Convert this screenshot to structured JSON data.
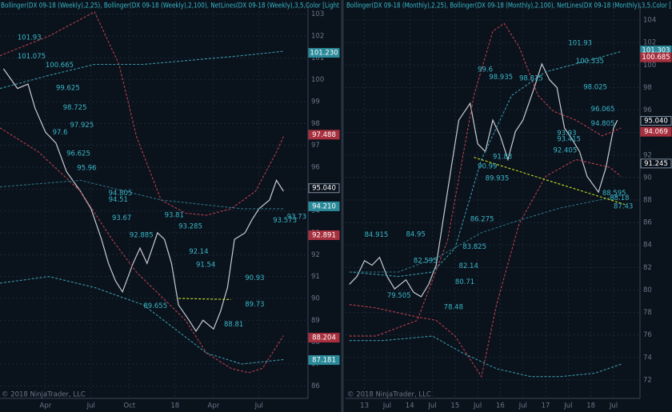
{
  "chart_data": [
    {
      "type": "line",
      "header": "Bollinger(DX 09-18 (Weekly),2,25), Bollinger(DX 09-18 (Weekly),2,100), NetLines(DX 09-18 (Weekly),3,5,Color [Light",
      "footer": "© 2018 NinjaTrader, LLC",
      "xlim": [
        0,
        88
      ],
      "ylim": [
        85.5,
        103.5
      ],
      "xticks": [
        {
          "value": 13,
          "label": "Apr"
        },
        {
          "value": 26,
          "label": "Jul"
        },
        {
          "value": 37,
          "label": "Oct"
        },
        {
          "value": 50,
          "label": "18"
        },
        {
          "value": 61,
          "label": "Apr"
        },
        {
          "value": 74,
          "label": "Jul"
        }
      ],
      "yticks": [
        86,
        87,
        88,
        89,
        90,
        91,
        92,
        93,
        94,
        95,
        96,
        97,
        98,
        99,
        100,
        101,
        102,
        103
      ],
      "grid": true,
      "series": [
        {
          "color": "#c8ccd2",
          "style": "solid",
          "x": [
            1,
            5,
            8,
            10,
            13,
            16,
            19,
            23,
            26,
            29,
            31,
            33,
            35,
            38,
            40,
            42,
            45,
            47,
            49,
            51,
            54,
            56,
            58,
            61,
            63,
            65,
            67,
            70,
            72,
            74,
            77,
            79,
            81
          ],
          "values": [
            100.5,
            99.6,
            99.8,
            98.7,
            97.6,
            97.1,
            95.8,
            94.9,
            94.1,
            92.7,
            91.6,
            90.8,
            90.3,
            91.6,
            92.3,
            91.6,
            93.0,
            92.7,
            91.6,
            89.7,
            89.0,
            88.5,
            89.0,
            88.6,
            89.4,
            90.5,
            92.7,
            93.0,
            93.6,
            94.1,
            94.5,
            95.4,
            94.9
          ]
        },
        {
          "color": "#b8404c",
          "style": "dashed",
          "x": [
            0,
            14,
            27,
            34,
            39,
            46,
            53,
            59,
            66,
            73,
            79,
            81
          ],
          "values": [
            101.1,
            102.0,
            103.1,
            100.7,
            97.4,
            94.5,
            93.9,
            93.8,
            94.1,
            94.9,
            96.7,
            97.4
          ]
        },
        {
          "color": "#b8404c",
          "style": "dashed",
          "x": [
            0,
            11,
            23,
            32,
            39,
            46,
            53,
            59,
            66,
            71,
            75,
            81
          ],
          "values": [
            97.8,
            96.7,
            94.9,
            92.7,
            91.2,
            90.1,
            89.0,
            87.5,
            86.8,
            86.6,
            86.8,
            88.3
          ]
        },
        {
          "color": "#3a98a8",
          "style": "dashed",
          "x": [
            0,
            14,
            27,
            41,
            55,
            69,
            81
          ],
          "values": [
            99.6,
            100.2,
            100.7,
            100.7,
            100.9,
            101.1,
            101.3
          ]
        },
        {
          "color": "#3a98a8",
          "style": "dashed",
          "x": [
            0,
            14,
            27,
            41,
            50,
            59,
            69,
            81
          ],
          "values": [
            90.7,
            91.0,
            90.5,
            89.7,
            88.6,
            87.5,
            87.0,
            87.2
          ]
        },
        {
          "color": "#2c7080",
          "style": "dashed",
          "x": [
            0,
            23,
            46,
            69,
            81
          ],
          "values": [
            95.1,
            95.4,
            94.5,
            94.1,
            94.1
          ]
        },
        {
          "color": "#c8e020",
          "style": "dashed",
          "x": [
            51,
            66
          ],
          "values": [
            90.0,
            89.95
          ]
        }
      ],
      "annotations": [
        {
          "x": 5,
          "value": 101.93
        },
        {
          "x": 5,
          "value": 101.075
        },
        {
          "x": 13,
          "value": 100.665
        },
        {
          "x": 16,
          "value": 99.625
        },
        {
          "x": 18,
          "value": 98.725
        },
        {
          "x": 20,
          "value": 97.925
        },
        {
          "x": 15,
          "value": 97.6
        },
        {
          "x": 19,
          "value": 96.625
        },
        {
          "x": 22,
          "value": 95.96
        },
        {
          "x": 31,
          "value": 94.805
        },
        {
          "x": 31,
          "value": 94.51
        },
        {
          "x": 32,
          "value": 93.67
        },
        {
          "x": 47,
          "value": 93.81
        },
        {
          "x": 51,
          "value": 93.285
        },
        {
          "x": 37,
          "value": 92.885
        },
        {
          "x": 54,
          "value": 92.14
        },
        {
          "x": 56,
          "value": 91.54
        },
        {
          "x": 70,
          "value": 90.93
        },
        {
          "x": 70,
          "value": 89.73
        },
        {
          "x": 41,
          "value": 89.655
        },
        {
          "x": 64,
          "value": 88.81
        },
        {
          "x": 82,
          "value": 93.73
        },
        {
          "x": 78,
          "value": 93.573
        }
      ],
      "tags": [
        {
          "value": 101.23,
          "label": "101.230",
          "color": "#2a8a9a"
        },
        {
          "value": 97.488,
          "label": "97.488",
          "color": "#a8303e"
        },
        {
          "value": 95.04,
          "label": "95.040",
          "color": "#0a121c"
        },
        {
          "value": 94.21,
          "label": "94.210",
          "color": "#2a8a9a"
        },
        {
          "value": 92.891,
          "label": "92.891",
          "color": "#a8303e"
        },
        {
          "value": 88.204,
          "label": "88.204",
          "color": "#a8303e"
        },
        {
          "value": 87.181,
          "label": "87.181",
          "color": "#2a8a9a"
        }
      ]
    },
    {
      "type": "line",
      "header": "Bollinger(DX 09-18 (Monthly),2,25), Bollinger(DX 09-18 (Monthly),2,100), NetLines(DX 09-18 (Monthly),3,5,Color [",
      "footer": "© 2018 NinjaTrader, LLC",
      "xlim": [
        0,
        78
      ],
      "ylim": [
        70.5,
        105.5
      ],
      "xticks": [
        {
          "value": 5,
          "label": "13"
        },
        {
          "value": 11,
          "label": "Jul"
        },
        {
          "value": 17,
          "label": "14"
        },
        {
          "value": 23,
          "label": "Jul"
        },
        {
          "value": 29,
          "label": "15"
        },
        {
          "value": 35,
          "label": "Jul"
        },
        {
          "value": 41,
          "label": "16"
        },
        {
          "value": 47,
          "label": "Jul"
        },
        {
          "value": 53,
          "label": "17"
        },
        {
          "value": 59,
          "label": "Jul"
        },
        {
          "value": 65,
          "label": "18"
        },
        {
          "value": 71,
          "label": "Jul"
        }
      ],
      "yticks": [
        72,
        74,
        76,
        78,
        80,
        82,
        84,
        86,
        88,
        90,
        92,
        94,
        96,
        98,
        100,
        102,
        104
      ],
      "grid": true,
      "series": [
        {
          "color": "#c8ccd2",
          "style": "solid",
          "x": [
            1,
            3,
            5,
            7,
            9,
            11,
            13,
            16,
            18,
            20,
            22,
            24,
            26,
            28,
            30,
            33,
            35,
            37,
            39,
            41,
            43,
            45,
            47,
            50,
            52,
            54,
            56,
            58,
            60,
            62,
            64,
            67,
            69,
            71,
            72
          ],
          "values": [
            80.5,
            81.2,
            82.6,
            82.2,
            82.9,
            81.2,
            80.1,
            80.9,
            79.8,
            79.4,
            80.5,
            82.2,
            86.6,
            90.9,
            95.1,
            96.6,
            93.0,
            92.3,
            95.1,
            93.7,
            91.6,
            94.1,
            95.1,
            98.0,
            100.1,
            98.7,
            98.0,
            94.4,
            93.4,
            92.3,
            90.1,
            88.7,
            90.9,
            94.4,
            95.1
          ]
        },
        {
          "color": "#b8404c",
          "style": "dashed",
          "x": [
            1,
            8,
            19,
            27,
            34,
            39,
            42,
            46,
            51,
            55,
            61,
            68,
            73
          ],
          "values": [
            75.9,
            75.9,
            77.3,
            84.4,
            97.3,
            103.0,
            103.7,
            101.6,
            97.3,
            95.9,
            95.1,
            93.7,
            94.4
          ]
        },
        {
          "color": "#b8404c",
          "style": "dashed",
          "x": [
            1,
            8,
            19,
            24,
            29,
            36,
            40,
            46,
            53,
            61,
            70,
            73
          ],
          "values": [
            78.7,
            78.4,
            77.6,
            77.3,
            75.9,
            72.3,
            78.7,
            85.9,
            90.1,
            91.6,
            90.9,
            90.1
          ]
        },
        {
          "color": "#3a98a8",
          "style": "dashed",
          "x": [
            1,
            14,
            23,
            29,
            36,
            44,
            53,
            61,
            73
          ],
          "values": [
            81.6,
            81.2,
            81.6,
            83.7,
            91.6,
            97.3,
            99.4,
            100.1,
            101.2
          ]
        },
        {
          "color": "#3a98a8",
          "style": "dashed",
          "x": [
            1,
            10,
            23,
            31,
            40,
            49,
            57,
            66,
            73
          ],
          "values": [
            75.5,
            75.5,
            75.9,
            74.4,
            73.0,
            72.3,
            72.3,
            72.6,
            73.4
          ]
        },
        {
          "color": "#2c7080",
          "style": "dashed",
          "x": [
            1,
            14,
            25,
            36,
            46,
            57,
            73
          ],
          "values": [
            81.6,
            81.6,
            83.0,
            85.1,
            86.2,
            87.3,
            88.4
          ]
        },
        {
          "color": "#c8e020",
          "style": "dashed",
          "x": [
            34,
            74
          ],
          "values": [
            91.8,
            87.6
          ]
        }
      ],
      "annotations": [
        {
          "x": 59,
          "value": 101.93
        },
        {
          "x": 61,
          "value": 100.335
        },
        {
          "x": 35,
          "value": 99.6
        },
        {
          "x": 38,
          "value": 98.935
        },
        {
          "x": 46,
          "value": 98.815
        },
        {
          "x": 63,
          "value": 98.025
        },
        {
          "x": 65,
          "value": 96.065
        },
        {
          "x": 65,
          "value": 94.805
        },
        {
          "x": 56,
          "value": 93.93
        },
        {
          "x": 56,
          "value": 93.415
        },
        {
          "x": 55,
          "value": 92.405
        },
        {
          "x": 39,
          "value": 91.83
        },
        {
          "x": 35,
          "value": 90.99
        },
        {
          "x": 37,
          "value": 89.935
        },
        {
          "x": 33,
          "value": 86.275
        },
        {
          "x": 16,
          "value": 84.95
        },
        {
          "x": 5,
          "value": 84.915
        },
        {
          "x": 31,
          "value": 83.825
        },
        {
          "x": 18,
          "value": 82.595
        },
        {
          "x": 30,
          "value": 82.14
        },
        {
          "x": 29,
          "value": 80.71
        },
        {
          "x": 11,
          "value": 79.505
        },
        {
          "x": 26,
          "value": 78.48
        },
        {
          "x": 68,
          "value": 88.595
        },
        {
          "x": 70,
          "value": 88.18
        },
        {
          "x": 71,
          "value": 87.43
        }
      ],
      "tags": [
        {
          "value": 101.303,
          "label": "101.303",
          "color": "#2a8a9a"
        },
        {
          "value": 100.685,
          "label": "100.685",
          "color": "#a8303e"
        },
        {
          "value": 95.04,
          "label": "95.040",
          "color": "#0a121c"
        },
        {
          "value": 94.069,
          "label": "94.069",
          "color": "#a8303e"
        },
        {
          "value": 91.245,
          "label": "91.245",
          "color": "#0a121c"
        }
      ]
    }
  ]
}
